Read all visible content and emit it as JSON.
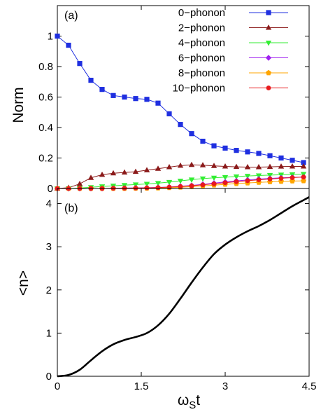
{
  "chart_data": [
    {
      "type": "line",
      "panel_label": "(a)",
      "ylabel": "Norm",
      "xlim": [
        0,
        4.5
      ],
      "ylim": [
        0,
        1.2
      ],
      "yticks": [
        "0",
        "0.2",
        "0.4",
        "0.6",
        "0.8",
        "1"
      ],
      "x": [
        0,
        0.2,
        0.4,
        0.6,
        0.8,
        1.0,
        1.2,
        1.4,
        1.6,
        1.8,
        2.0,
        2.2,
        2.4,
        2.6,
        2.8,
        3.0,
        3.2,
        3.4,
        3.6,
        3.8,
        4.0,
        4.2,
        4.4
      ],
      "legend_position": "top-right",
      "series": [
        {
          "name": "0−phonon",
          "color": "#1f2fe0",
          "marker": "square",
          "values": [
            1.0,
            0.94,
            0.82,
            0.71,
            0.65,
            0.61,
            0.6,
            0.59,
            0.585,
            0.56,
            0.49,
            0.42,
            0.36,
            0.31,
            0.28,
            0.265,
            0.25,
            0.24,
            0.23,
            0.215,
            0.2,
            0.185,
            0.17
          ]
        },
        {
          "name": "2−phonon",
          "color": "#8b1a1a",
          "marker": "triangle-up",
          "values": [
            0.0,
            0.005,
            0.03,
            0.07,
            0.09,
            0.1,
            0.105,
            0.11,
            0.12,
            0.13,
            0.14,
            0.15,
            0.155,
            0.153,
            0.148,
            0.145,
            0.142,
            0.14,
            0.14,
            0.142,
            0.144,
            0.145,
            0.145
          ]
        },
        {
          "name": "4−phonon",
          "color": "#33ee33",
          "marker": "triangle-down",
          "values": [
            0.0,
            0.0,
            0.003,
            0.008,
            0.013,
            0.018,
            0.022,
            0.026,
            0.03,
            0.035,
            0.042,
            0.05,
            0.058,
            0.065,
            0.07,
            0.074,
            0.078,
            0.082,
            0.085,
            0.088,
            0.09,
            0.092,
            0.095
          ]
        },
        {
          "name": "6−phonon",
          "color": "#a020f0",
          "marker": "diamond",
          "values": [
            0.0,
            0.0,
            0.0,
            0.0,
            0.0,
            0.002,
            0.003,
            0.004,
            0.005,
            0.007,
            0.01,
            0.015,
            0.02,
            0.027,
            0.035,
            0.043,
            0.05,
            0.056,
            0.062,
            0.066,
            0.07,
            0.073,
            0.075
          ]
        },
        {
          "name": "8−phonon",
          "color": "#ffa500",
          "marker": "pentagon",
          "values": [
            0.0,
            0.0,
            0.0,
            0.0,
            0.0,
            0.0,
            0.0,
            0.001,
            0.002,
            0.003,
            0.005,
            0.008,
            0.012,
            0.017,
            0.022,
            0.027,
            0.032,
            0.036,
            0.04,
            0.043,
            0.046,
            0.049,
            0.05
          ]
        },
        {
          "name": "10−phonon",
          "color": "#e8191c",
          "marker": "circle",
          "values": [
            0.0,
            0.0,
            0.0,
            0.0,
            0.0,
            0.001,
            0.002,
            0.003,
            0.004,
            0.006,
            0.009,
            0.013,
            0.018,
            0.024,
            0.031,
            0.038,
            0.045,
            0.051,
            0.057,
            0.062,
            0.067,
            0.071,
            0.075
          ]
        }
      ]
    },
    {
      "type": "line",
      "panel_label": "(b)",
      "ylabel": "<n>",
      "xlabel_main": "ω",
      "xlabel_sub": "S",
      "xlabel_tail": "t",
      "xlim": [
        0,
        4.5
      ],
      "ylim": [
        0,
        4.35
      ],
      "xticks": [
        "0",
        "1.5",
        "3",
        "4.5"
      ],
      "yticks": [
        "0",
        "1",
        "2",
        "3",
        "4"
      ],
      "series": [
        {
          "color": "#000000",
          "x": [
            0,
            0.2,
            0.4,
            0.6,
            0.8,
            1.0,
            1.2,
            1.4,
            1.6,
            1.8,
            2.0,
            2.2,
            2.4,
            2.6,
            2.8,
            3.0,
            3.2,
            3.4,
            3.6,
            3.8,
            4.0,
            4.2,
            4.4,
            4.5
          ],
          "values": [
            0,
            0.03,
            0.15,
            0.37,
            0.58,
            0.74,
            0.84,
            0.91,
            1.0,
            1.18,
            1.45,
            1.8,
            2.17,
            2.52,
            2.83,
            3.05,
            3.22,
            3.36,
            3.48,
            3.62,
            3.78,
            3.94,
            4.08,
            4.15
          ]
        }
      ]
    }
  ]
}
